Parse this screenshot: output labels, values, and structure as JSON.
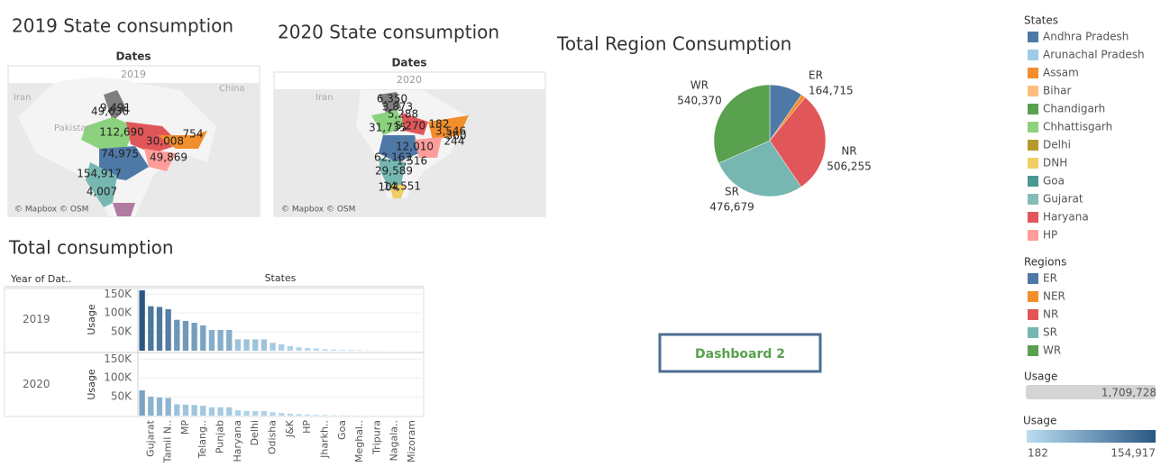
{
  "maps": [
    {
      "title": "2019 State consumption",
      "header": "Dates",
      "year": "2019",
      "credit": "© Mapbox © OSM",
      "places": [
        "Pakistan",
        "China",
        "Iran"
      ],
      "labels": [
        "9,491",
        "49,636",
        "112,690",
        "30,008",
        "754",
        "74,975",
        "49,869",
        "154,917",
        "4,007"
      ]
    },
    {
      "title": "2020 State consumption",
      "header": "Dates",
      "year": "2020",
      "credit": "© Mapbox © OSM",
      "places": [
        "Iran"
      ],
      "labels": [
        "6,350",
        "3,873",
        "5,288",
        "31,735",
        "5,270",
        "182",
        "3,546",
        "360",
        "244",
        "12,010",
        "62,163",
        "1,516",
        "29,589",
        "14,551",
        "104"
      ]
    }
  ],
  "chart_data": [
    {
      "type": "pie",
      "title": "Total Region Consumption",
      "legend_title": "Regions",
      "categories": [
        "ER",
        "NER",
        "NR",
        "SR",
        "WR"
      ],
      "values": [
        164715,
        21709,
        506255,
        476679,
        540370
      ],
      "value_labels": [
        "164,715",
        null,
        "506,255",
        "476,679",
        "540,370"
      ],
      "colors": [
        "#4e79a7",
        "#f28e2b",
        "#e15759",
        "#76b7b2",
        "#59a14f"
      ]
    },
    {
      "type": "bar",
      "title": "Total consumption",
      "row_header": "Year of Dat..",
      "xlabel": "States",
      "ylabel": "Usage",
      "categories": [
        null,
        "Gujarat",
        null,
        "Tamil N..",
        null,
        "MP",
        null,
        "Telang..",
        null,
        "Punjab",
        null,
        "Haryana",
        null,
        "Delhi",
        null,
        "Odisha",
        null,
        "J&K",
        null,
        "HP",
        null,
        "Jharkh..",
        null,
        "Goa",
        null,
        "Meghal..",
        null,
        "Tripura",
        null,
        "Nagala..",
        null,
        "Mizoram"
      ],
      "ylim": [
        0,
        165000
      ],
      "yticks": [
        {
          "value": 50000,
          "label": "50K"
        },
        {
          "value": 100000,
          "label": "100K"
        },
        {
          "value": 150000,
          "label": "150K"
        }
      ],
      "grid": true,
      "series": [
        {
          "name": "2019",
          "values": [
            160000,
            118000,
            116000,
            110000,
            82000,
            79000,
            74000,
            67000,
            55000,
            55000,
            55000,
            30000,
            30000,
            30000,
            30000,
            21000,
            17000,
            12000,
            9000,
            7000,
            6000,
            4000,
            3000,
            2000,
            2000,
            1500,
            800,
            500,
            300,
            200,
            150,
            100
          ]
        },
        {
          "name": "2020",
          "values": [
            67000,
            50000,
            48000,
            47000,
            30000,
            29000,
            28000,
            26000,
            22000,
            22000,
            22000,
            14000,
            12000,
            12000,
            12000,
            9000,
            7000,
            5000,
            4000,
            3000,
            2000,
            1500,
            1000,
            800,
            600,
            400,
            300,
            200,
            100,
            80,
            60,
            40
          ]
        }
      ]
    }
  ],
  "legends": {
    "states": {
      "title": "States",
      "items": [
        "Andhra Pradesh",
        "Arunachal Pradesh",
        "Assam",
        "Bihar",
        "Chandigarh",
        "Chhattisgarh",
        "Delhi",
        "DNH",
        "Goa",
        "Gujarat",
        "Haryana",
        "HP"
      ],
      "colors": [
        "#4e79a7",
        "#a0cbe8",
        "#f28e2b",
        "#ffbe7d",
        "#59a14f",
        "#8cd17d",
        "#b6992d",
        "#f1ce63",
        "#499894",
        "#86bcb6",
        "#e15759",
        "#ff9d9a"
      ]
    },
    "usage_size": {
      "title": "Usage",
      "value": 1709728,
      "label": "1,709,728"
    },
    "usage_color": {
      "title": "Usage",
      "colors": [
        "#b9ddf1",
        "#2a5783"
      ],
      "ticks": [
        182,
        {
          "value": 154917,
          "label": "154,917"
        }
      ]
    }
  },
  "button": "Dashboard 2"
}
